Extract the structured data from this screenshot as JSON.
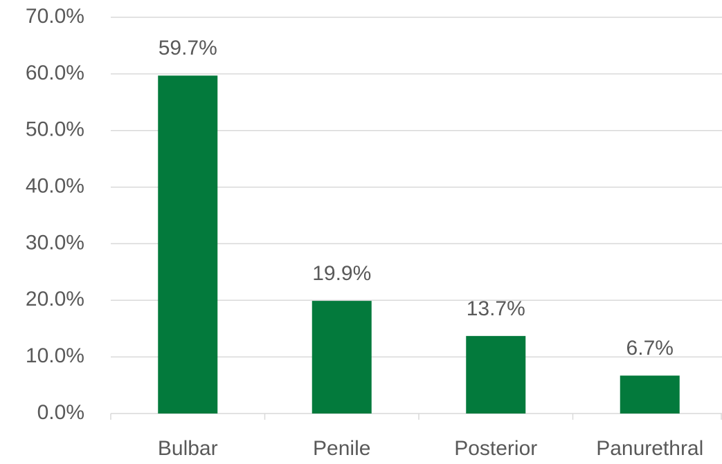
{
  "chart_data": {
    "type": "bar",
    "categories": [
      "Bulbar",
      "Penile",
      "Posterior",
      "Panurethral"
    ],
    "values": [
      59.7,
      19.9,
      13.7,
      6.7
    ],
    "value_labels": [
      "59.7%",
      "19.9%",
      "13.7%",
      "6.7%"
    ],
    "color": "#037a3c",
    "ylim": [
      0,
      70
    ],
    "yticks": [
      {
        "value": 0,
        "label": "0.0%"
      },
      {
        "value": 10,
        "label": "10.0%"
      },
      {
        "value": 20,
        "label": "20.0%"
      },
      {
        "value": 30,
        "label": "30.0%"
      },
      {
        "value": 40,
        "label": "40.0%"
      },
      {
        "value": 50,
        "label": "50.0%"
      },
      {
        "value": 60,
        "label": "60.0%"
      },
      {
        "value": 70,
        "label": "70.0%"
      }
    ],
    "grid": true
  }
}
